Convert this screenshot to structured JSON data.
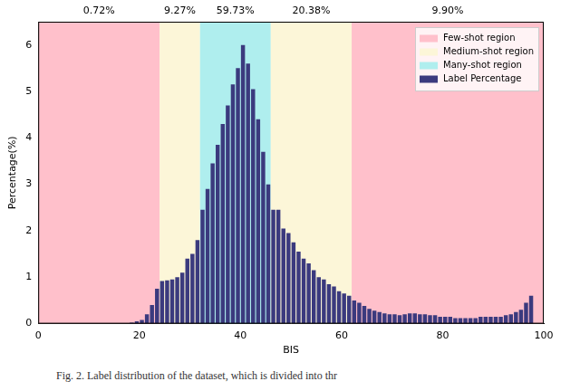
{
  "chart_data": {
    "type": "histogram",
    "caption": "Fig. 2.  Label distribution of the dataset, which is divided into thr",
    "x_label": "BIS",
    "y_label": "Percentage(%)",
    "bins": [
      0,
      1,
      2,
      3,
      4,
      5,
      6,
      7,
      8,
      9,
      10,
      11,
      12,
      13,
      14,
      15,
      16,
      17,
      18,
      19,
      20,
      21,
      22,
      23,
      24,
      25,
      26,
      27,
      28,
      29,
      30,
      31,
      32,
      33,
      34,
      35,
      36,
      37,
      38,
      39,
      40,
      41,
      42,
      43,
      44,
      45,
      46,
      47,
      48,
      49,
      50,
      51,
      52,
      53,
      54,
      55,
      56,
      57,
      58,
      59,
      60,
      61,
      62,
      63,
      64,
      65,
      66,
      67,
      68,
      69,
      70,
      71,
      72,
      73,
      74,
      75,
      76,
      77,
      78,
      79,
      80,
      81,
      82,
      83,
      84,
      85,
      86,
      87,
      88,
      89,
      90,
      91,
      92,
      93,
      94,
      95,
      96,
      97,
      98,
      99,
      100
    ],
    "series": [
      {
        "name": "Label Percentage",
        "color": "#3b3a7e",
        "values": [
          0,
          0,
          0,
          0,
          0,
          0,
          0,
          0,
          0,
          0,
          0,
          0,
          0,
          0,
          0,
          0,
          0,
          0,
          0.02,
          0.05,
          0.08,
          0.2,
          0.4,
          0.75,
          0.92,
          0.93,
          0.95,
          1.0,
          1.1,
          1.4,
          1.5,
          1.8,
          2.45,
          2.9,
          3.45,
          3.85,
          4.3,
          4.7,
          5.15,
          5.5,
          6.0,
          5.6,
          5.05,
          4.4,
          3.7,
          3.0,
          2.45,
          2.45,
          2.05,
          1.95,
          1.75,
          1.55,
          1.4,
          1.3,
          1.15,
          1.0,
          0.95,
          0.85,
          0.8,
          0.7,
          0.65,
          0.6,
          0.5,
          0.45,
          0.38,
          0.32,
          0.28,
          0.25,
          0.22,
          0.2,
          0.2,
          0.18,
          0.2,
          0.22,
          0.22,
          0.2,
          0.2,
          0.18,
          0.18,
          0.15,
          0.15,
          0.15,
          0.12,
          0.12,
          0.12,
          0.12,
          0.12,
          0.15,
          0.15,
          0.15,
          0.15,
          0.15,
          0.18,
          0.2,
          0.25,
          0.3,
          0.45,
          0.6,
          0,
          0
        ]
      }
    ],
    "regions": [
      {
        "name": "Few-shot region",
        "start": 0,
        "end": 24,
        "color": "#ffc0cb",
        "value": 0.72,
        "label": "0.72%"
      },
      {
        "name": "Medium-shot region",
        "start": 24,
        "end": 32,
        "color": "#fcf6d8",
        "value": 9.27,
        "label": "9.27%"
      },
      {
        "name": "Many-shot region",
        "start": 32,
        "end": 46,
        "color": "#afeeee",
        "value": 59.73,
        "label": "59.73%"
      },
      {
        "name": "Medium-shot region",
        "start": 46,
        "end": 62,
        "color": "#fcf6d8",
        "value": 20.38,
        "label": "20.38%"
      },
      {
        "name": "Few-shot region",
        "start": 62,
        "end": 100,
        "color": "#ffc0cb",
        "value": 9.9,
        "label": "9.90%"
      }
    ],
    "xlim": [
      0,
      100
    ],
    "xticks": [
      0,
      20,
      40,
      60,
      80,
      100
    ],
    "ylim": [
      0,
      6.5
    ],
    "yticks": [
      0,
      1,
      2,
      3,
      4,
      5,
      6
    ],
    "grid": false,
    "legend": "upper right"
  }
}
